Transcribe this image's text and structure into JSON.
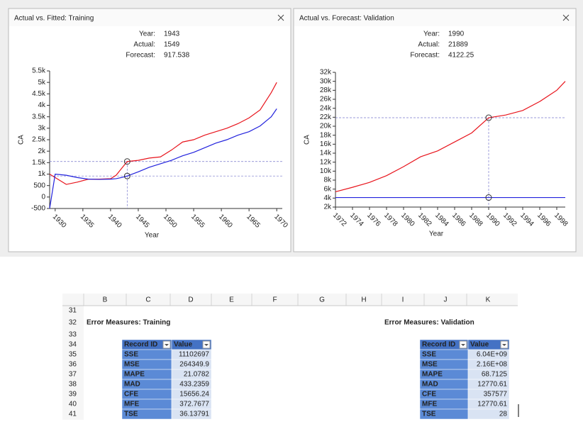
{
  "chart_data": [
    {
      "type": "line",
      "title": "Actual vs. Fitted: Training",
      "xlabel": "Year",
      "ylabel": "CA",
      "x": [
        1929,
        1930,
        1932,
        1934,
        1936,
        1938,
        1940,
        1941,
        1942,
        1943,
        1945,
        1947,
        1949,
        1951,
        1953,
        1955,
        1957,
        1959,
        1961,
        1963,
        1965,
        1967,
        1969,
        1970
      ],
      "series": [
        {
          "name": "Actual:",
          "color": "#e8141c",
          "values": [
            1000,
            850,
            550,
            650,
            780,
            780,
            800,
            950,
            1250,
            1549,
            1600,
            1700,
            1750,
            2050,
            2400,
            2500,
            2700,
            2850,
            3000,
            3200,
            3450,
            3800,
            4550,
            5000
          ]
        },
        {
          "name": "Forecast:",
          "color": "#2222dd",
          "values": [
            -500,
            1000,
            950,
            850,
            780,
            770,
            780,
            800,
            850,
            917.538,
            1100,
            1300,
            1450,
            1600,
            1800,
            1950,
            2150,
            2350,
            2500,
            2700,
            2850,
            3100,
            3500,
            3850
          ]
        }
      ],
      "xlim": [
        1929,
        1971
      ],
      "xticks": [
        1930,
        1935,
        1940,
        1945,
        1950,
        1955,
        1960,
        1965,
        1970
      ],
      "ylim": [
        -500,
        5500
      ],
      "yticks": [
        -500,
        0,
        500,
        {
          "value": 1000,
          "label": "1k"
        },
        {
          "value": 1500,
          "label": "1.5k"
        },
        {
          "value": 2000,
          "label": "2k"
        },
        {
          "value": 2500,
          "label": "2.5k"
        },
        {
          "value": 3000,
          "label": "3k"
        },
        {
          "value": 3500,
          "label": "3.5k"
        },
        {
          "value": 4000,
          "label": "4k"
        },
        {
          "value": 4500,
          "label": "4.5k"
        },
        {
          "value": 5000,
          "label": "5k"
        },
        {
          "value": 5500,
          "label": "5.5k"
        }
      ],
      "tooltip": {
        "year_label": "Year:",
        "year": 1943,
        "values": [
          1549,
          917.538
        ]
      }
    },
    {
      "type": "line",
      "title": "Actual vs. Forecast: Validation",
      "xlabel": "Year",
      "ylabel": "CA",
      "x": [
        1972,
        1974,
        1976,
        1978,
        1980,
        1982,
        1984,
        1986,
        1988,
        1990,
        1992,
        1994,
        1996,
        1998,
        1999
      ],
      "series": [
        {
          "name": "Actual:",
          "color": "#e8141c",
          "values": [
            5400,
            6400,
            7500,
            9000,
            11000,
            13200,
            14500,
            16500,
            18500,
            21889,
            22500,
            23500,
            25500,
            28000,
            30000
          ]
        },
        {
          "name": "Forecast:",
          "color": "#2222dd",
          "values": [
            4122.25,
            4122.25,
            4122.25,
            4122.25,
            4122.25,
            4122.25,
            4122.25,
            4122.25,
            4122.25,
            4122.25,
            4122.25,
            4122.25,
            4122.25,
            4122.25,
            4122.25
          ]
        }
      ],
      "xlim": [
        1972,
        1999
      ],
      "xticks": [
        1972,
        1974,
        1976,
        1978,
        1980,
        1982,
        1984,
        1986,
        1988,
        1990,
        1992,
        1994,
        1996,
        1998
      ],
      "ylim": [
        2000,
        32000
      ],
      "yticks": [
        {
          "value": 2000,
          "label": "2k"
        },
        {
          "value": 4000,
          "label": "4k"
        },
        {
          "value": 6000,
          "label": "6k"
        },
        {
          "value": 8000,
          "label": "8k"
        },
        {
          "value": 10000,
          "label": "10k"
        },
        {
          "value": 12000,
          "label": "12k"
        },
        {
          "value": 14000,
          "label": "14k"
        },
        {
          "value": 16000,
          "label": "16k"
        },
        {
          "value": 18000,
          "label": "18k"
        },
        {
          "value": 20000,
          "label": "20k"
        },
        {
          "value": 22000,
          "label": "22k"
        },
        {
          "value": 24000,
          "label": "24k"
        },
        {
          "value": 26000,
          "label": "26k"
        },
        {
          "value": 28000,
          "label": "28k"
        },
        {
          "value": 30000,
          "label": "30k"
        },
        {
          "value": 32000,
          "label": "32k"
        }
      ],
      "tooltip": {
        "year_label": "Year:",
        "year": 1990,
        "values": [
          21889,
          4122.25
        ]
      }
    }
  ],
  "sheet": {
    "columns": [
      "B",
      "C",
      "D",
      "E",
      "F",
      "G",
      "H",
      "I",
      "J",
      "K"
    ],
    "rows": [
      31,
      32,
      33,
      34,
      35,
      36,
      37,
      38,
      39,
      40,
      41
    ],
    "tables": [
      {
        "title": "Error Measures: Training",
        "headers": [
          "Record ID",
          "Value"
        ],
        "rows": [
          [
            "SSE",
            "11102697"
          ],
          [
            "MSE",
            "264349.9"
          ],
          [
            "MAPE",
            "21.0782"
          ],
          [
            "MAD",
            "433.2359"
          ],
          [
            "CFE",
            "15656.24"
          ],
          [
            "MFE",
            "372.7677"
          ],
          [
            "TSE",
            "36.13791"
          ]
        ]
      },
      {
        "title": "Error Measures: Validation",
        "headers": [
          "Record ID",
          "Value"
        ],
        "rows": [
          [
            "SSE",
            "6.04E+09"
          ],
          [
            "MSE",
            "2.16E+08"
          ],
          [
            "MAPE",
            "68.7125"
          ],
          [
            "MAD",
            "12770.61"
          ],
          [
            "CFE",
            "357577"
          ],
          [
            "MFE",
            "12770.61"
          ],
          [
            "TSE",
            "28"
          ]
        ]
      }
    ]
  }
}
